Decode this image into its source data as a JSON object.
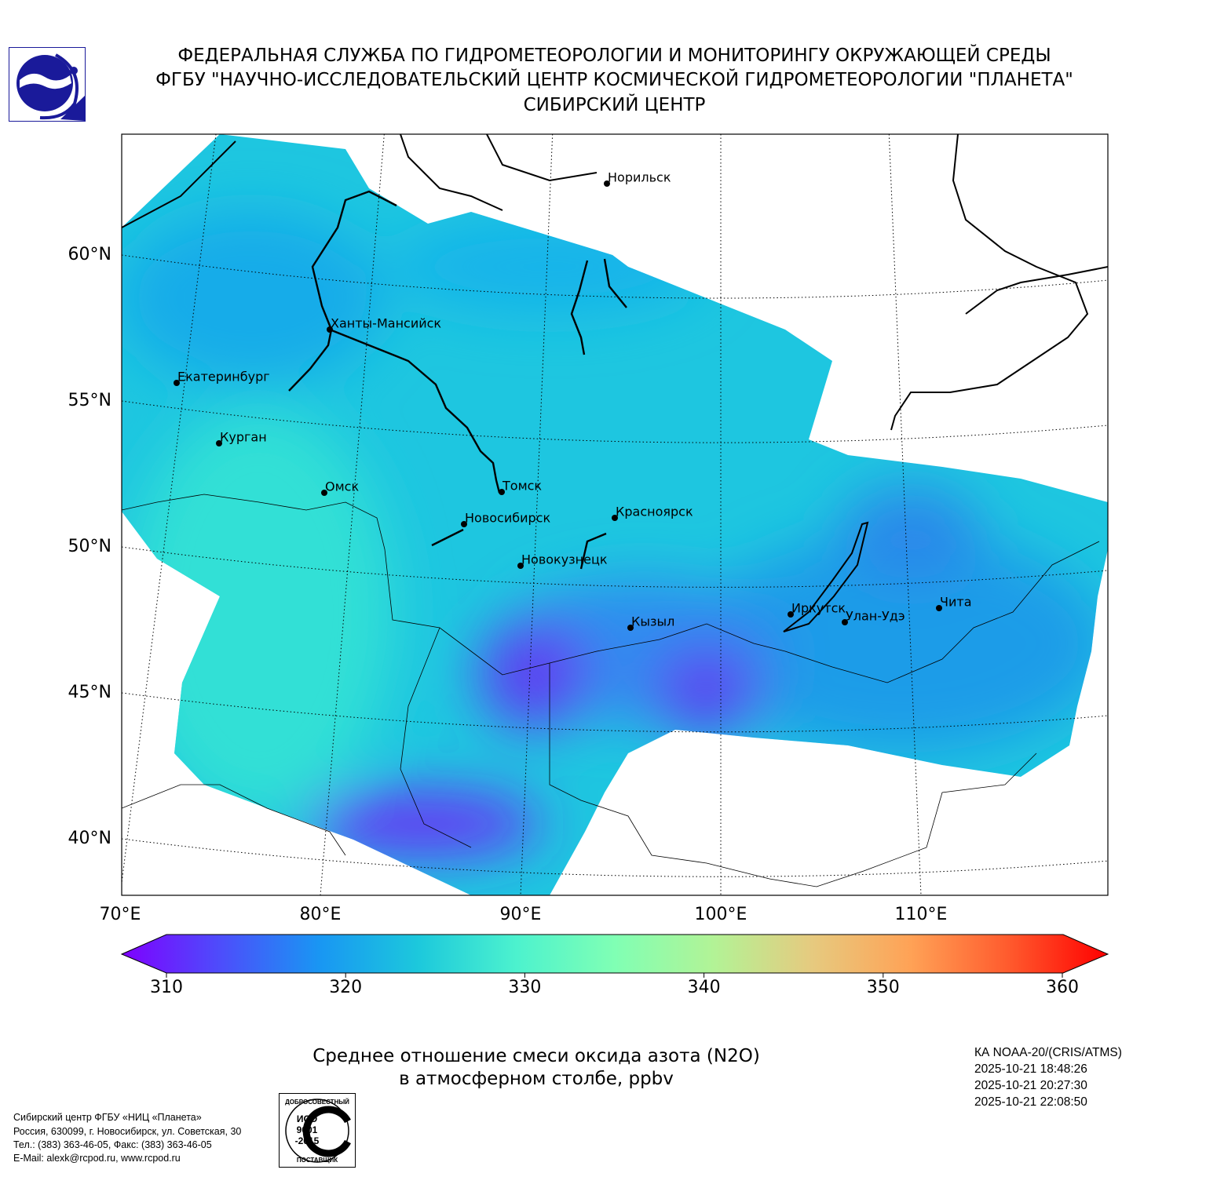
{
  "header": {
    "lines": [
      "ФЕДЕРАЛЬНАЯ СЛУЖБА ПО ГИДРОМЕТЕОРОЛОГИИ И МОНИТОРИНГУ ОКРУЖАЮЩЕЙ СРЕДЫ",
      "ФГБУ \"НАУЧНО-ИССЛЕДОВАТЕЛЬСКИЙ ЦЕНТР КОСМИЧЕСКОЙ ГИДРОМЕТЕОРОЛОГИИ \"ПЛАНЕТА\"",
      "СИБИРСКИЙ ЦЕНТР"
    ]
  },
  "map": {
    "lat_labels": [
      {
        "value": 60,
        "label": "60°N"
      },
      {
        "value": 55,
        "label": "55°N"
      },
      {
        "value": 50,
        "label": "50°N"
      },
      {
        "value": 45,
        "label": "45°N"
      },
      {
        "value": 40,
        "label": "40°N"
      }
    ],
    "lon_labels": [
      {
        "value": 70,
        "label": "70°E"
      },
      {
        "value": 80,
        "label": "80°E"
      },
      {
        "value": 90,
        "label": "90°E"
      },
      {
        "value": 100,
        "label": "100°E"
      },
      {
        "value": 110,
        "label": "110°E"
      }
    ],
    "cities": [
      "Норильск",
      "Ханты-Мансийск",
      "Екатеринбург",
      "Курган",
      "Омск",
      "Томск",
      "Новосибирск",
      "Красноярск",
      "Новокузнецк",
      "Кызыл",
      "Иркутск",
      "Улан-Удэ",
      "Чита"
    ]
  },
  "colorbar": {
    "ticks": [
      310,
      320,
      330,
      340,
      350,
      360
    ]
  },
  "caption": {
    "lines": [
      "Среднее отношение смеси оксида азота (N2O)",
      "в атмосферном столбе, ppbv"
    ]
  },
  "satellite": {
    "lines": [
      "КА NOAA-20/(CRIS/ATMS)",
      "2025-10-21 18:48:26",
      "2025-10-21 20:27:30",
      "2025-10-21 22:08:50"
    ]
  },
  "footer": {
    "lines": [
      "Сибирский центр ФГБУ «НИЦ «Планета»",
      "Россия, 630099, г. Новосибирск, ул. Советская, 30",
      "Тел.: (383) 363-46-05, Факс: (383) 363-46-05",
      "E-Mail: alexk@rcpod.ru, www.rcpod.ru"
    ]
  },
  "iso_logo": {
    "top": "ДОБРОСОВЕСТНЫЙ",
    "middle": [
      "ИСО",
      "9001",
      "-2015"
    ],
    "bottom": "ПОСТАВЩИК"
  }
}
